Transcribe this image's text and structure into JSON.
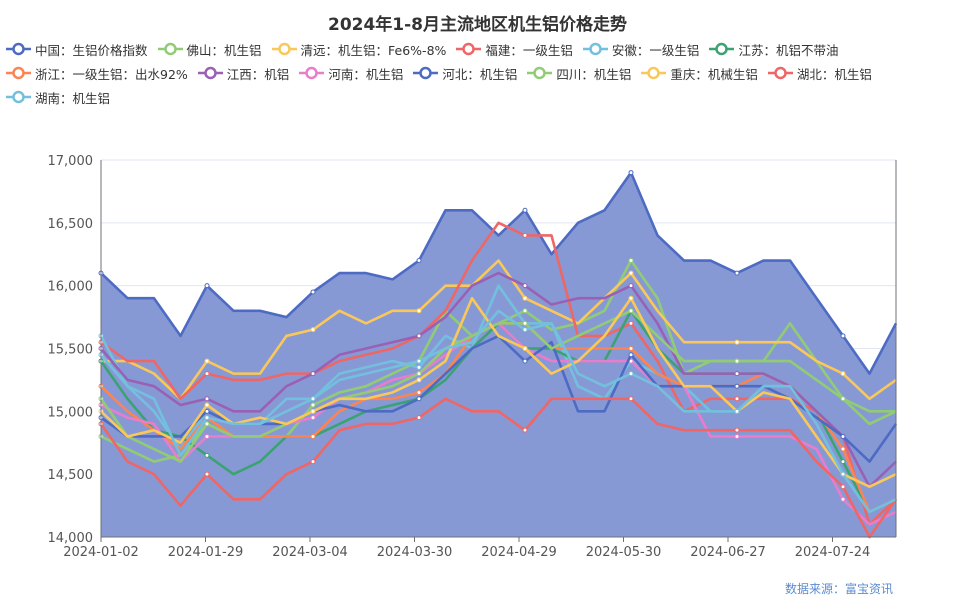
{
  "chart_data": {
    "type": "line",
    "title": "2024年1-8月主流地区机生铝价格走势",
    "x_tick_labels": [
      "2024-01-02",
      "2024-01-29",
      "2024-03-04",
      "2024-03-30",
      "2024-04-29",
      "2024-05-30",
      "2024-06-27",
      "2024-07-24"
    ],
    "ylim": [
      14000,
      17000
    ],
    "y_ticks": [
      "14,000",
      "14,500",
      "15,000",
      "15,500",
      "16,000",
      "16,500",
      "17,000"
    ],
    "grid": true,
    "legend_placement": "top",
    "series": [
      {
        "name": "中国：生铝价格指数",
        "color": "#4e6bc4",
        "area": true,
        "values": [
          16100,
          15900,
          15900,
          15600,
          16000,
          15800,
          15800,
          15750,
          15950,
          16100,
          16100,
          16050,
          16200,
          16600,
          16600,
          16400,
          16600,
          16250,
          16500,
          16600,
          16900,
          16400,
          16200,
          16200,
          16100,
          16200,
          16200,
          15900,
          15600,
          15300,
          15700
        ]
      },
      {
        "name": "佛山：机生铝",
        "color": "#91cc75",
        "values": [
          14800,
          14700,
          14600,
          14650,
          14900,
          14800,
          14800,
          14800,
          15050,
          15150,
          15200,
          15300,
          15400,
          15800,
          15600,
          15700,
          15800,
          15650,
          15700,
          15800,
          16200,
          15900,
          15300,
          15400,
          15400,
          15400,
          15700,
          15400,
          15100,
          15000,
          15000
        ]
      },
      {
        "name": "清远：机生铝：Fe6%-8%",
        "color": "#fac858",
        "values": [
          15400,
          15400,
          15300,
          15100,
          15400,
          15300,
          15300,
          15600,
          15650,
          15800,
          15700,
          15800,
          15800,
          16000,
          16000,
          16200,
          15900,
          15800,
          15700,
          15900,
          16100,
          15800,
          15550,
          15550,
          15550,
          15550,
          15550,
          15400,
          15300,
          15100,
          15250
        ]
      },
      {
        "name": "福建：一级生铝",
        "color": "#ee6666",
        "values": [
          15550,
          15400,
          15400,
          15100,
          15300,
          15250,
          15250,
          15300,
          15300,
          15400,
          15450,
          15500,
          15600,
          15800,
          16200,
          16500,
          16400,
          16400,
          15600,
          15600,
          15700,
          15400,
          15000,
          15100,
          15100,
          15100,
          15100,
          15000,
          14800,
          14100,
          14300
        ]
      },
      {
        "name": "安徽：一级生铝",
        "color": "#73c0de",
        "values": [
          15600,
          15200,
          15000,
          14700,
          15000,
          14900,
          14900,
          15100,
          15100,
          15300,
          15350,
          15400,
          15350,
          15600,
          15500,
          16000,
          15700,
          15700,
          15200,
          15100,
          15400,
          15300,
          15200,
          15000,
          15000,
          15200,
          15200,
          15000,
          14600,
          14200,
          14300
        ]
      },
      {
        "name": "江苏：机铝不带油",
        "color": "#3ba272",
        "values": [
          15400,
          15100,
          14850,
          14800,
          14650,
          14500,
          14600,
          14800,
          14800,
          14900,
          15000,
          15050,
          15100,
          15250,
          15500,
          15700,
          15500,
          15500,
          15400,
          15400,
          15800,
          15500,
          15300,
          15300,
          15300,
          15300,
          15200,
          15000,
          14600,
          14200,
          14300
        ]
      },
      {
        "name": "浙江：一级生铝：出水92%",
        "color": "#fc8452",
        "values": [
          15200,
          15000,
          14850,
          14700,
          14950,
          14800,
          14800,
          14800,
          14800,
          15000,
          15100,
          15100,
          15150,
          15300,
          15600,
          15700,
          15700,
          15500,
          15500,
          15500,
          15500,
          15300,
          15200,
          15200,
          15200,
          15300,
          15200,
          15000,
          14700,
          14200,
          14300
        ]
      },
      {
        "name": "江西：机铝",
        "color": "#9a60b4",
        "values": [
          15500,
          15250,
          15200,
          15050,
          15100,
          15000,
          15000,
          15200,
          15300,
          15450,
          15500,
          15550,
          15600,
          15750,
          16000,
          16100,
          16000,
          15850,
          15900,
          15900,
          16000,
          15700,
          15300,
          15300,
          15300,
          15300,
          15200,
          15000,
          14800,
          14400,
          14600
        ]
      },
      {
        "name": "河南：机生铝",
        "color": "#ea7ccc",
        "values": [
          15050,
          14950,
          14900,
          14600,
          14800,
          14800,
          14800,
          14900,
          14950,
          15100,
          15150,
          15250,
          15300,
          15450,
          15600,
          15700,
          15500,
          15400,
          15400,
          15400,
          15400,
          15200,
          15200,
          14800,
          14800,
          14800,
          14800,
          14700,
          14300,
          14100,
          14200
        ]
      },
      {
        "name": "河北：机生铝",
        "color": "#4e6bc4",
        "values": [
          14950,
          14800,
          14800,
          14800,
          15000,
          14900,
          14900,
          14900,
          15000,
          15050,
          15000,
          15000,
          15100,
          15300,
          15500,
          15600,
          15400,
          15550,
          15000,
          15000,
          15450,
          15200,
          15200,
          15200,
          15200,
          15200,
          15100,
          14950,
          14800,
          14600,
          14900
        ]
      },
      {
        "name": "四川：机生铝",
        "color": "#91cc75",
        "values": [
          15100,
          14800,
          14700,
          14600,
          14900,
          14800,
          14800,
          14900,
          15000,
          15100,
          15150,
          15200,
          15300,
          15500,
          15600,
          15700,
          15700,
          15500,
          15600,
          15700,
          15800,
          15600,
          15400,
          15400,
          15400,
          15400,
          15400,
          15250,
          15100,
          14900,
          15000
        ]
      },
      {
        "name": "重庆：机械生铝",
        "color": "#fac858",
        "values": [
          15000,
          14800,
          14850,
          14750,
          15050,
          14900,
          14950,
          14900,
          15000,
          15100,
          15100,
          15150,
          15250,
          15400,
          15900,
          15600,
          15500,
          15300,
          15400,
          15600,
          15900,
          15500,
          15200,
          15200,
          15000,
          15150,
          15100,
          14800,
          14500,
          14400,
          14500
        ]
      },
      {
        "name": "湖北：机生铝",
        "color": "#ee6666",
        "values": [
          14900,
          14600,
          14500,
          14250,
          14500,
          14300,
          14300,
          14500,
          14600,
          14850,
          14900,
          14900,
          14950,
          15100,
          15000,
          15000,
          14850,
          15100,
          15100,
          15100,
          15100,
          14900,
          14850,
          14850,
          14850,
          14850,
          14850,
          14600,
          14400,
          14000,
          14300
        ]
      },
      {
        "name": "湖南：机生铝",
        "color": "#73c0de",
        "values": [
          15450,
          15200,
          15100,
          14650,
          14950,
          14900,
          14900,
          15000,
          15100,
          15250,
          15300,
          15350,
          15400,
          15500,
          15550,
          15800,
          15650,
          15700,
          15300,
          15200,
          15300,
          15200,
          15000,
          15000,
          15000,
          15200,
          15200,
          14900,
          14500,
          14200,
          14300
        ]
      }
    ]
  },
  "source": "数据来源：富宝资讯",
  "area_fill": "#8799d5"
}
